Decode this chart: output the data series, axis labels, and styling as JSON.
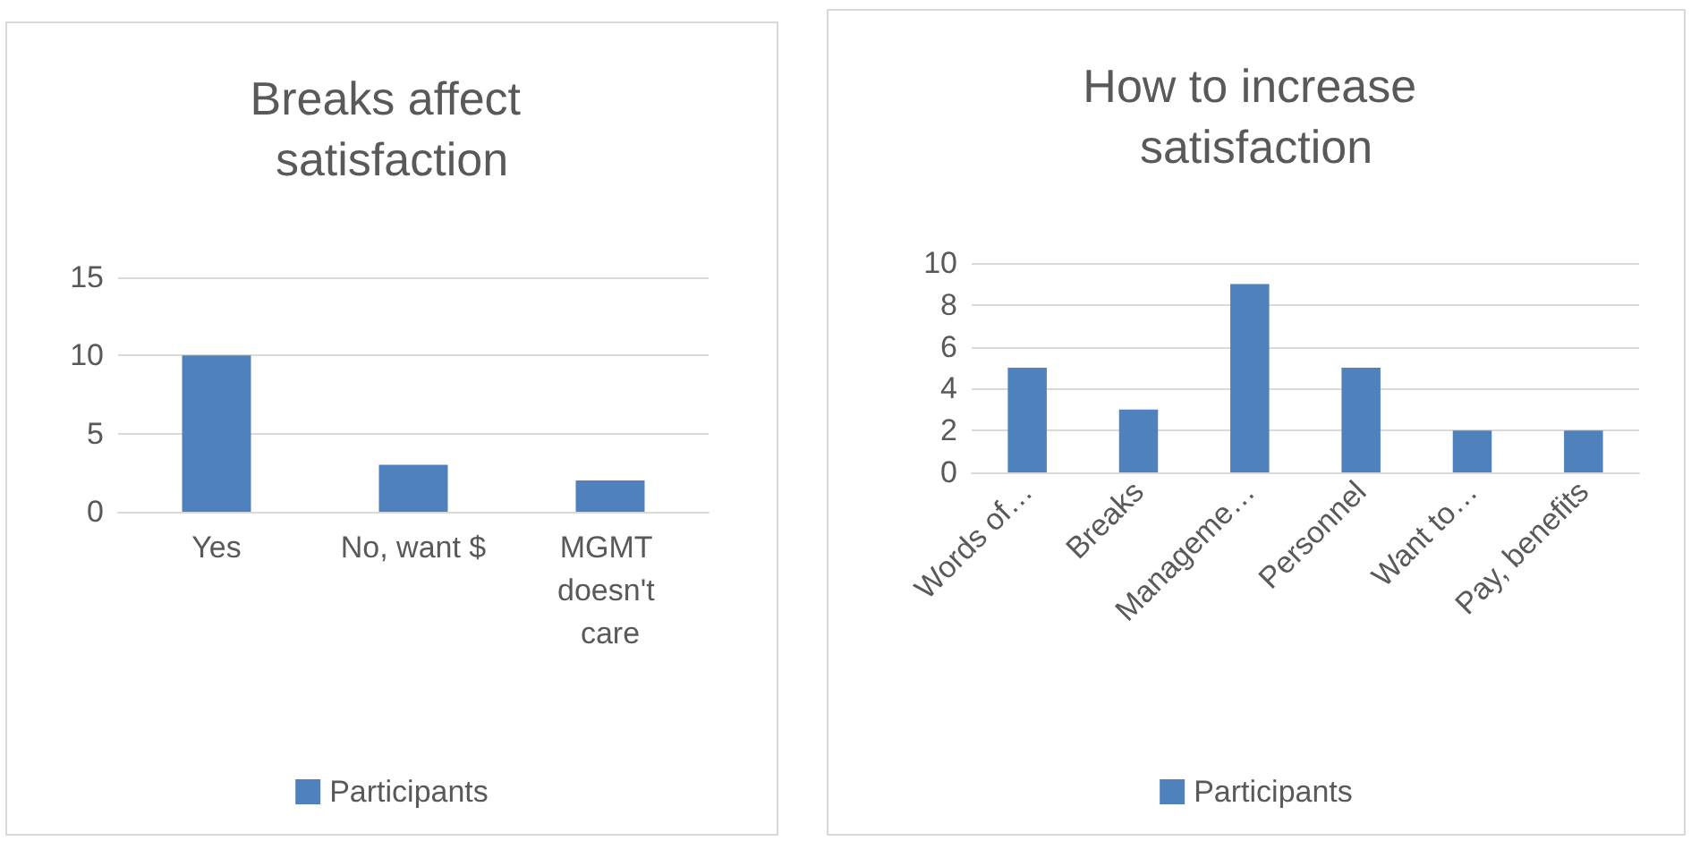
{
  "chart_data": [
    {
      "type": "bar",
      "title": "Breaks affect satisfaction",
      "categories": [
        "Yes",
        "No, want $",
        "MGMT doesn't care"
      ],
      "series": [
        {
          "name": "Participants",
          "color": "#4f81bd",
          "values": [
            10,
            3,
            2
          ]
        }
      ],
      "ylim": [
        0,
        15
      ],
      "yticks": [
        0,
        5,
        10,
        15
      ],
      "grid": "y",
      "legend": "bottom"
    },
    {
      "type": "bar",
      "title": "How to increase satisfaction",
      "categories": [
        "Words of…",
        "Breaks",
        "Manageme…",
        "Personnel",
        "Want to…",
        "Pay, benefits"
      ],
      "series": [
        {
          "name": "Participants",
          "color": "#4f81bd",
          "values": [
            5,
            3,
            9,
            5,
            2,
            2
          ]
        }
      ],
      "ylim": [
        0,
        10
      ],
      "yticks": [
        0,
        2,
        4,
        6,
        8,
        10
      ],
      "grid": "y",
      "legend": "bottom"
    }
  ]
}
